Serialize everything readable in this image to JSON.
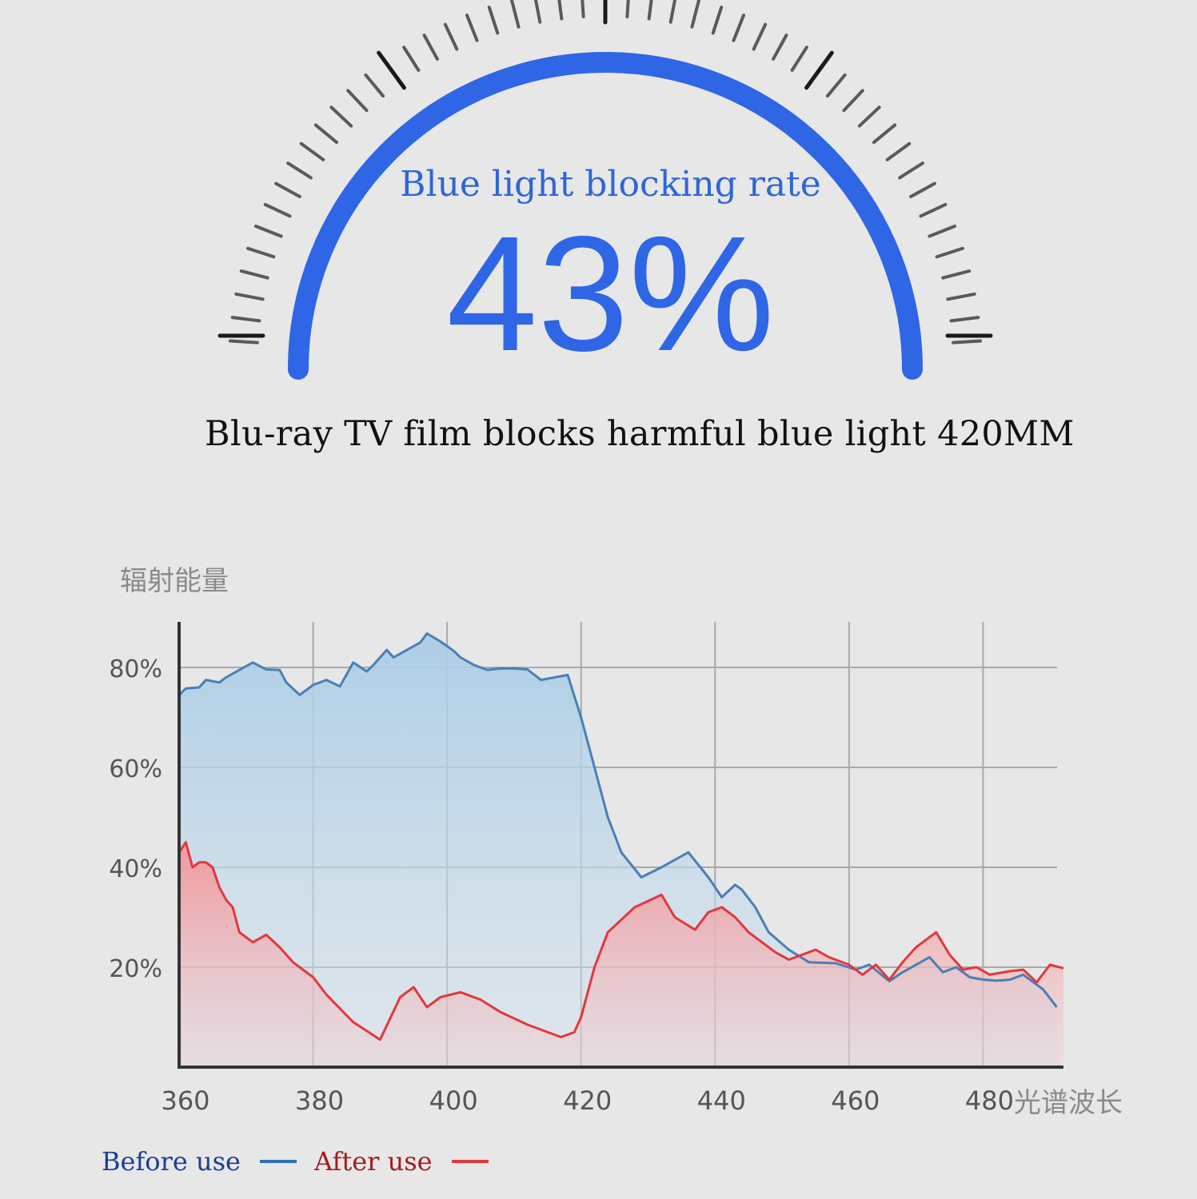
{
  "gauge": {
    "title": "Blue light blocking rate",
    "value_text": "43%",
    "value": 43,
    "arc_color": "#2f66e6"
  },
  "caption": "Blu-ray TV film blocks harmful blue light 420MM",
  "chart_data": {
    "type": "area",
    "ylabel": "辐射能量",
    "xlabel": "光谱波长",
    "xlim": [
      360,
      492
    ],
    "ylim": [
      0,
      88
    ],
    "x_ticks": [
      360,
      380,
      400,
      420,
      440,
      460,
      480
    ],
    "y_ticks": [
      {
        "value": 20,
        "label": "20%"
      },
      {
        "value": 40,
        "label": "40%"
      },
      {
        "value": 60,
        "label": "60%"
      },
      {
        "value": 80,
        "label": "80%"
      }
    ],
    "grid": true,
    "legend": "bottom-left",
    "series": [
      {
        "name": "Before use",
        "color": "#4a7fb5",
        "fill": "#a9cce6",
        "x": [
          360,
          361,
          363,
          364,
          366,
          367,
          369,
          371,
          373,
          375,
          376,
          378,
          380,
          382,
          384,
          386,
          388,
          389,
          391,
          392,
          394,
          396,
          397,
          399,
          401,
          402,
          404,
          406,
          408,
          410,
          412,
          414,
          416,
          418,
          420,
          422,
          424,
          426,
          429,
          432,
          436,
          439,
          441,
          443,
          444,
          446,
          448,
          451,
          454,
          458,
          461,
          463,
          466,
          468,
          470,
          472,
          474,
          476,
          478,
          480,
          482,
          484,
          486,
          489,
          491
        ],
        "values": [
          74.5,
          75.8,
          76,
          77.5,
          77,
          78,
          79.5,
          81,
          79.6,
          79.5,
          77,
          74.5,
          76.5,
          77.5,
          76.2,
          81,
          79.2,
          80.5,
          83.5,
          82,
          83.5,
          85,
          86.8,
          85.2,
          83.3,
          82,
          80.5,
          79.5,
          79.8,
          79.8,
          79.6,
          77.5,
          78,
          78.5,
          70,
          60,
          50,
          43,
          38,
          40,
          43,
          38,
          34,
          36.5,
          35.5,
          32,
          27,
          23.5,
          21,
          20.8,
          19.5,
          20.5,
          17.2,
          19,
          20.5,
          22,
          19,
          20,
          18,
          17.5,
          17.3,
          17.5,
          18.5,
          15.5,
          12
        ]
      },
      {
        "name": "After use",
        "color": "#e0383e",
        "fill": "#f4a6a8",
        "x": [
          360,
          361,
          362,
          363,
          364,
          365,
          366,
          367,
          368,
          369,
          371,
          373,
          375,
          377,
          380,
          382,
          386,
          390,
          393,
          395,
          397,
          399,
          402,
          405,
          408,
          412,
          417,
          419,
          420,
          422,
          424,
          428,
          432,
          434,
          437,
          439,
          441,
          443,
          445,
          447,
          449,
          451,
          453,
          455,
          457,
          460,
          462,
          464,
          466,
          468,
          470,
          473,
          475,
          477,
          479,
          481,
          484,
          486,
          488,
          490,
          492
        ],
        "values": [
          43,
          45,
          40,
          41,
          41,
          40,
          36,
          33.5,
          32,
          27,
          25,
          26.5,
          24,
          21,
          18,
          14.5,
          9,
          5.5,
          14,
          16,
          12,
          14,
          15,
          13.5,
          11,
          8.5,
          6,
          7,
          10,
          20,
          27,
          32,
          34.5,
          30,
          27.5,
          31,
          32,
          30,
          27,
          25,
          23,
          21.5,
          22.5,
          23.5,
          22,
          20.5,
          18.5,
          20.5,
          17.5,
          21,
          24,
          27,
          22.5,
          19.5,
          20,
          18.5,
          19.2,
          19.5,
          17,
          20.5,
          19.8
        ]
      }
    ]
  },
  "legend": [
    {
      "label": "Before use",
      "color": "#1d3f8f",
      "swatch": "#2d6fb4"
    },
    {
      "label": "After use",
      "color": "#a31b1f",
      "swatch": "#e0383e"
    }
  ]
}
